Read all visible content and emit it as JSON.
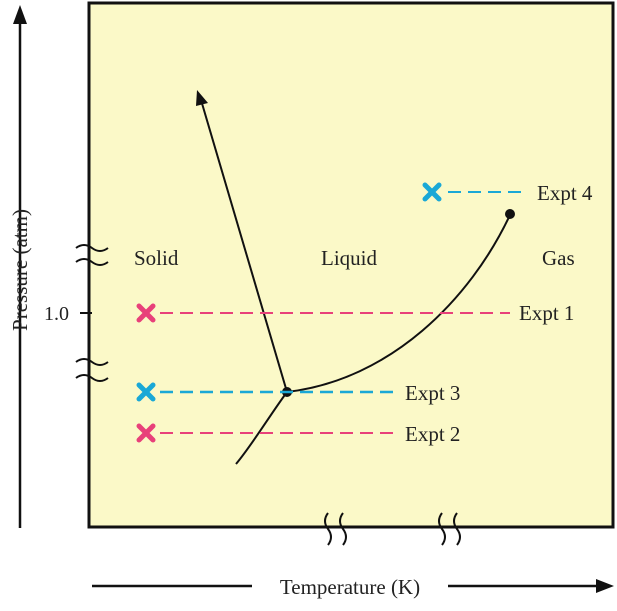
{
  "axes": {
    "y_label": "Pressure (atm)",
    "y_tick": "1.0",
    "x_label": "Temperature (K)"
  },
  "regions": {
    "solid": "Solid",
    "liquid": "Liquid",
    "gas": "Gas"
  },
  "experiments": [
    {
      "label": "Expt 1",
      "color": "#e8417a"
    },
    {
      "label": "Expt 2",
      "color": "#e8417a"
    },
    {
      "label": "Expt 3",
      "color": "#1aa8d6"
    },
    {
      "label": "Expt 4",
      "color": "#1aa8d6"
    }
  ],
  "colors": {
    "plot_background": "#fbf9c8",
    "curve": "#111111",
    "axis": "#111111"
  }
}
